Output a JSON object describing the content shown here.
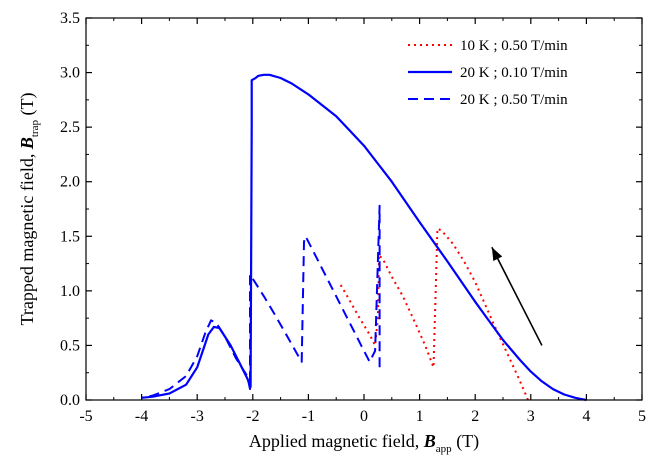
{
  "chart_data": {
    "type": "line",
    "title": "",
    "xlabel": {
      "prefix": "Applied magnetic field, ",
      "symbol": "B",
      "sub": "app",
      "suffix": " (T)"
    },
    "ylabel": {
      "prefix": "Trapped magnetic field, ",
      "symbol": "B",
      "sub": "trap",
      "suffix": " (T)"
    },
    "xlim": [
      -5,
      5
    ],
    "ylim": [
      0,
      3.5
    ],
    "xticks": [
      -5,
      -4,
      -3,
      -2,
      -1,
      0,
      1,
      2,
      3,
      4,
      5
    ],
    "yticks": [
      0.0,
      0.5,
      1.0,
      1.5,
      2.0,
      2.5,
      3.0,
      3.5
    ],
    "ytick_labels": [
      "0.0",
      "0.5",
      "1.0",
      "1.5",
      "2.0",
      "2.5",
      "3.0",
      "3.5"
    ],
    "grid": false,
    "legend_position": "top-right",
    "annotation": {
      "type": "arrow",
      "from": [
        3.2,
        0.5
      ],
      "to": [
        2.3,
        1.4
      ],
      "color": "#000000"
    },
    "series": [
      {
        "name": "10 K ; 0.50 T/min",
        "color": "#ff0000",
        "dash": "dotted",
        "x": [
          2.95,
          2.8,
          2.6,
          2.4,
          2.2,
          2.0,
          1.8,
          1.6,
          1.4,
          1.32,
          1.3,
          1.25,
          1.1,
          0.9,
          0.7,
          0.5,
          0.35,
          0.27,
          0.25,
          0.2,
          0.1,
          -0.1,
          -0.3,
          -0.45
        ],
        "y": [
          0.0,
          0.18,
          0.4,
          0.62,
          0.85,
          1.08,
          1.27,
          1.43,
          1.55,
          1.57,
          1.2,
          0.3,
          0.5,
          0.73,
          0.95,
          1.13,
          1.28,
          1.33,
          0.75,
          0.5,
          0.6,
          0.77,
          0.95,
          1.08
        ]
      },
      {
        "name": "20 K ; 0.10 T/min",
        "color": "#0000ff",
        "dash": "solid",
        "x": [
          4.0,
          3.9,
          3.8,
          3.6,
          3.4,
          3.2,
          3.0,
          2.8,
          2.5,
          2.2,
          2.0,
          1.5,
          1.0,
          0.5,
          0.0,
          -0.5,
          -1.0,
          -1.3,
          -1.5,
          -1.7,
          -1.8,
          -1.9,
          -1.95,
          -2.02,
          -2.02,
          -2.04,
          -2.1,
          -2.2,
          -2.4,
          -2.6,
          -2.7,
          -2.8,
          -2.9,
          -3.0,
          -3.2,
          -3.5,
          -3.8,
          -4.0
        ],
        "y": [
          0.0,
          0.01,
          0.02,
          0.05,
          0.1,
          0.17,
          0.26,
          0.37,
          0.55,
          0.76,
          0.9,
          1.27,
          1.63,
          2.0,
          2.33,
          2.6,
          2.8,
          2.9,
          2.95,
          2.98,
          2.98,
          2.97,
          2.95,
          2.93,
          2.5,
          0.12,
          0.2,
          0.3,
          0.5,
          0.66,
          0.67,
          0.6,
          0.45,
          0.3,
          0.14,
          0.06,
          0.03,
          0.02
        ]
      },
      {
        "name": "20 K ; 0.50 T/min",
        "color": "#0000ff",
        "dash": "dashed",
        "x": [
          0.28,
          0.28,
          0.2,
          0.1,
          -0.05,
          -0.2,
          -0.35,
          -0.5,
          -0.7,
          -0.9,
          -1.05,
          -1.08,
          -1.12,
          -1.2,
          -1.4,
          -1.6,
          -1.8,
          -1.95,
          -2.05,
          -2.05,
          -2.1,
          -2.3,
          -2.5,
          -2.65,
          -2.75,
          -2.85,
          -3.0,
          -3.2,
          -3.5,
          -3.8,
          -4.0
        ],
        "y": [
          0.3,
          1.78,
          0.45,
          0.35,
          0.5,
          0.65,
          0.8,
          0.95,
          1.15,
          1.35,
          1.5,
          1.45,
          0.35,
          0.42,
          0.6,
          0.78,
          0.95,
          1.07,
          1.15,
          0.1,
          0.22,
          0.38,
          0.58,
          0.7,
          0.73,
          0.62,
          0.4,
          0.22,
          0.1,
          0.04,
          0.02
        ]
      }
    ]
  }
}
